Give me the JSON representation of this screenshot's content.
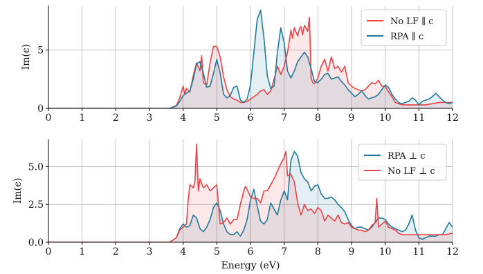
{
  "chart_data": [
    {
      "type": "area",
      "xlabel": "",
      "ylabel": "Im(ϵ)",
      "xlim": [
        0,
        12
      ],
      "ylim": [
        0,
        8.8
      ],
      "xticks": [
        "0",
        "1",
        "2",
        "3",
        "4",
        "5",
        "6",
        "7",
        "8",
        "9",
        "10",
        "11",
        "12"
      ],
      "yticks": [
        "0",
        "5"
      ],
      "ytick_values": [
        0,
        5
      ],
      "grid": true,
      "legend_position": "top-right",
      "series": [
        {
          "name": "No LF ∥ c",
          "color": "#ef4046",
          "x": [
            0,
            3.6,
            3.8,
            3.9,
            4.0,
            4.05,
            4.1,
            4.2,
            4.3,
            4.4,
            4.5,
            4.55,
            4.6,
            4.7,
            4.8,
            4.9,
            5.0,
            5.1,
            5.2,
            5.3,
            5.4,
            5.5,
            5.6,
            5.7,
            5.8,
            5.9,
            6.0,
            6.1,
            6.2,
            6.3,
            6.4,
            6.5,
            6.6,
            6.7,
            6.8,
            6.9,
            7.0,
            7.1,
            7.2,
            7.25,
            7.3,
            7.4,
            7.45,
            7.5,
            7.55,
            7.6,
            7.7,
            7.75,
            7.8,
            7.85,
            7.9,
            8.0,
            8.1,
            8.2,
            8.3,
            8.4,
            8.5,
            8.6,
            8.7,
            8.8,
            8.9,
            9.0,
            9.1,
            9.2,
            9.3,
            9.4,
            9.5,
            9.6,
            9.7,
            9.8,
            9.9,
            10.0,
            10.1,
            10.2,
            10.3,
            10.4,
            10.5,
            10.6,
            10.8,
            11.0,
            11.2,
            11.4,
            11.6,
            11.8,
            12.0
          ],
          "values": [
            0,
            0,
            0.25,
            0.9,
            1.9,
            1.2,
            1.7,
            1.4,
            2.8,
            3.9,
            3.2,
            4.5,
            2.2,
            2.0,
            3.9,
            5.3,
            5.3,
            4.4,
            2.7,
            1.6,
            1.0,
            0.8,
            0.7,
            0.5,
            0.5,
            0.6,
            0.8,
            1.0,
            1.2,
            1.5,
            1.6,
            1.2,
            1.5,
            2.5,
            3.6,
            2.9,
            3.6,
            4.8,
            6.7,
            6.0,
            6.9,
            6.2,
            6.8,
            7.0,
            6.3,
            7.1,
            6.6,
            7.8,
            2.6,
            2.2,
            2.1,
            2.6,
            3.6,
            4.2,
            3.2,
            4.4,
            3.4,
            3.6,
            3.1,
            3.6,
            2.2,
            1.9,
            1.7,
            1.6,
            1.5,
            1.6,
            1.9,
            2.2,
            2.1,
            2.4,
            1.9,
            1.9,
            1.4,
            1.0,
            0.5,
            0.4,
            0.3,
            0.3,
            0.3,
            0.3,
            0.3,
            0.4,
            0.5,
            0.5,
            0.5
          ]
        },
        {
          "name": "RPA ∥ c",
          "color": "#20799c",
          "x": [
            0,
            3.6,
            3.8,
            3.9,
            4.0,
            4.1,
            4.2,
            4.3,
            4.4,
            4.5,
            4.6,
            4.7,
            4.8,
            4.9,
            5.0,
            5.1,
            5.2,
            5.3,
            5.4,
            5.5,
            5.6,
            5.7,
            5.8,
            5.9,
            6.0,
            6.1,
            6.2,
            6.3,
            6.4,
            6.5,
            6.6,
            6.7,
            6.8,
            6.9,
            7.0,
            7.1,
            7.2,
            7.3,
            7.4,
            7.5,
            7.6,
            7.7,
            7.8,
            7.9,
            8.0,
            8.1,
            8.2,
            8.3,
            8.4,
            8.5,
            8.6,
            8.7,
            8.8,
            8.9,
            9.0,
            9.1,
            9.2,
            9.3,
            9.4,
            9.5,
            9.6,
            9.7,
            9.8,
            9.9,
            10.0,
            10.1,
            10.2,
            10.3,
            10.4,
            10.5,
            10.6,
            10.7,
            10.8,
            10.9,
            11.0,
            11.1,
            11.2,
            11.3,
            11.4,
            11.5,
            11.6,
            11.7,
            11.8,
            11.9,
            12.0
          ],
          "values": [
            0,
            0,
            0.2,
            0.6,
            1.1,
            1.3,
            1.5,
            2.5,
            3.8,
            4.0,
            3.0,
            1.8,
            1.9,
            3.0,
            4.2,
            3.0,
            1.2,
            0.9,
            1.1,
            1.8,
            1.9,
            0.7,
            0.5,
            0.8,
            2.0,
            4.8,
            7.6,
            8.4,
            6.0,
            2.8,
            1.7,
            1.9,
            4.8,
            6.9,
            5.6,
            3.2,
            2.6,
            3.2,
            4.0,
            4.4,
            4.8,
            4.4,
            3.4,
            2.3,
            2.2,
            2.5,
            2.9,
            3.0,
            2.5,
            2.6,
            2.7,
            2.3,
            2.0,
            1.6,
            1.3,
            1.0,
            1.2,
            1.5,
            1.1,
            0.8,
            0.9,
            1.0,
            1.2,
            1.6,
            2.0,
            1.8,
            1.2,
            0.8,
            0.5,
            0.4,
            0.5,
            0.6,
            0.9,
            0.7,
            0.3,
            0.6,
            0.7,
            0.8,
            1.0,
            1.3,
            1.0,
            0.7,
            0.5,
            0.4,
            0.5
          ]
        }
      ]
    },
    {
      "type": "area",
      "xlabel": "Energy (eV)",
      "ylabel": "Im(ϵ)",
      "xlim": [
        0,
        12
      ],
      "ylim": [
        0,
        6.8
      ],
      "xticks": [
        "0",
        "1",
        "2",
        "3",
        "4",
        "5",
        "6",
        "7",
        "8",
        "9",
        "10",
        "11",
        "12"
      ],
      "yticks": [
        "0.0",
        "2.5",
        "5.0"
      ],
      "ytick_values": [
        0,
        2.5,
        5.0
      ],
      "grid": true,
      "legend_position": "top-right",
      "series": [
        {
          "name": "RPA ⊥ c",
          "color": "#20799c",
          "x": [
            0,
            3.6,
            3.8,
            3.9,
            4.0,
            4.1,
            4.2,
            4.3,
            4.4,
            4.5,
            4.6,
            4.7,
            4.8,
            4.9,
            5.0,
            5.1,
            5.2,
            5.3,
            5.4,
            5.5,
            5.6,
            5.7,
            5.8,
            5.9,
            6.0,
            6.1,
            6.2,
            6.3,
            6.4,
            6.5,
            6.6,
            6.7,
            6.8,
            6.9,
            7.0,
            7.1,
            7.2,
            7.3,
            7.4,
            7.5,
            7.6,
            7.7,
            7.8,
            7.9,
            8.0,
            8.1,
            8.2,
            8.3,
            8.4,
            8.5,
            8.6,
            8.7,
            8.8,
            8.9,
            9.0,
            9.1,
            9.2,
            9.3,
            9.4,
            9.5,
            9.6,
            9.7,
            9.8,
            9.9,
            10.0,
            10.1,
            10.2,
            10.3,
            10.4,
            10.5,
            10.6,
            10.7,
            10.8,
            10.9,
            11.0,
            11.1,
            11.2,
            11.3,
            11.4,
            11.5,
            11.6,
            11.7,
            11.8,
            11.9,
            12.0
          ],
          "values": [
            0,
            0,
            0.3,
            0.9,
            1.2,
            1.0,
            1.1,
            1.8,
            1.6,
            0.9,
            0.7,
            1.0,
            1.5,
            2.3,
            2.6,
            2.1,
            1.2,
            0.7,
            0.5,
            0.5,
            0.7,
            0.4,
            0.8,
            1.5,
            2.8,
            3.5,
            2.4,
            1.4,
            1.2,
            1.5,
            2.6,
            2.2,
            1.8,
            2.8,
            3.4,
            2.8,
            5.4,
            6.0,
            5.7,
            4.6,
            4.2,
            4.0,
            3.4,
            3.7,
            3.8,
            3.2,
            2.9,
            2.9,
            3.0,
            2.8,
            2.5,
            2.3,
            2.0,
            1.5,
            1.1,
            0.9,
            1.0,
            1.0,
            0.9,
            0.8,
            1.0,
            1.3,
            1.6,
            1.6,
            1.5,
            1.2,
            1.0,
            0.9,
            0.8,
            0.7,
            0.8,
            1.2,
            1.8,
            0.8,
            0.3,
            0.2,
            0.3,
            0.4,
            0.4,
            0.4,
            0.5,
            0.5,
            0.9,
            1.3,
            1.0
          ]
        },
        {
          "name": "No LF ⊥ c",
          "color": "#ef4046",
          "x": [
            0,
            3.6,
            3.8,
            3.9,
            4.0,
            4.1,
            4.15,
            4.2,
            4.3,
            4.35,
            4.4,
            4.45,
            4.5,
            4.6,
            4.7,
            4.8,
            4.9,
            5.0,
            5.1,
            5.2,
            5.3,
            5.4,
            5.5,
            5.6,
            5.7,
            5.8,
            5.85,
            5.9,
            6.0,
            6.1,
            6.2,
            6.3,
            6.4,
            6.5,
            6.6,
            6.7,
            6.8,
            6.9,
            7.0,
            7.05,
            7.1,
            7.2,
            7.3,
            7.4,
            7.5,
            7.6,
            7.7,
            7.8,
            7.9,
            8.0,
            8.1,
            8.2,
            8.3,
            8.4,
            8.5,
            8.6,
            8.7,
            8.8,
            8.9,
            9.0,
            9.1,
            9.2,
            9.3,
            9.4,
            9.5,
            9.6,
            9.7,
            9.75,
            9.8,
            9.9,
            10.0,
            10.1,
            10.2,
            10.3,
            10.4,
            10.5,
            10.6,
            10.8,
            11.0,
            11.2,
            11.4,
            11.6,
            11.8,
            12.0
          ],
          "values": [
            0,
            0,
            0.3,
            0.8,
            1.0,
            1.2,
            2.8,
            3.8,
            3.6,
            4.0,
            6.5,
            3.4,
            4.2,
            3.6,
            3.8,
            3.4,
            3.6,
            3.8,
            1.2,
            1.3,
            1.6,
            1.2,
            1.5,
            1.5,
            2.5,
            3.4,
            3.7,
            3.5,
            3.0,
            2.9,
            2.9,
            2.6,
            3.4,
            3.4,
            3.8,
            4.2,
            4.7,
            5.2,
            5.6,
            6.0,
            4.4,
            4.5,
            4.0,
            2.6,
            1.8,
            2.5,
            2.1,
            2.2,
            1.9,
            2.3,
            2.1,
            1.4,
            1.8,
            1.6,
            1.4,
            1.8,
            1.3,
            1.2,
            1.3,
            1.0,
            0.9,
            0.8,
            0.8,
            0.7,
            0.8,
            1.1,
            1.3,
            2.9,
            1.0,
            1.2,
            1.4,
            1.0,
            0.9,
            0.8,
            0.6,
            0.5,
            0.5,
            0.5,
            0.5,
            0.5,
            0.5,
            0.5,
            0.5,
            0.6
          ]
        }
      ]
    }
  ]
}
